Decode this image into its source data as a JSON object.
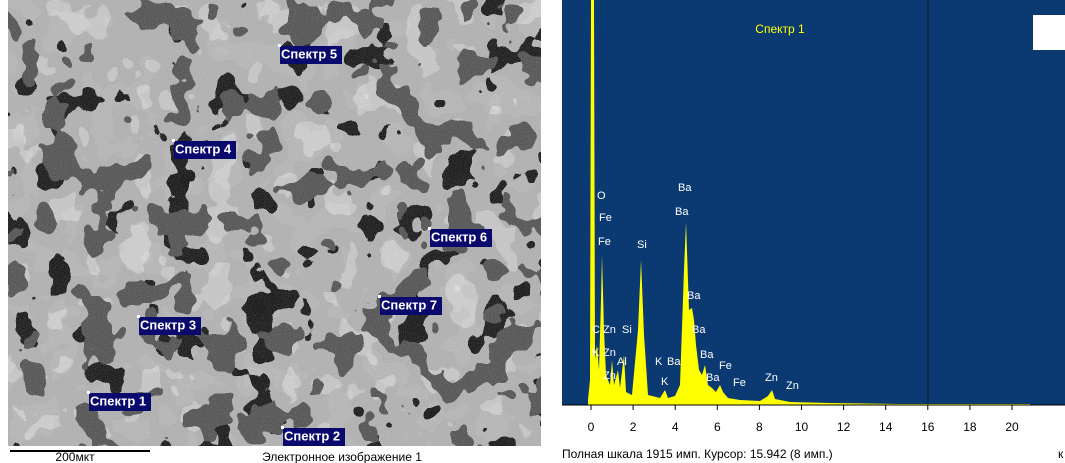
{
  "sem_image": {
    "labels": [
      "Спектр 5",
      "Спектр 4",
      "Спектр 6",
      "Спектр 7",
      "Спектр 3",
      "Спектр 1",
      "Спектр 2"
    ],
    "scale_bar": "200мкт",
    "caption": "Электронное изображение 1"
  },
  "spectrum": {
    "title": "Спектр 1",
    "xticks": [
      0,
      2,
      4,
      6,
      8,
      10,
      12,
      14,
      16,
      18,
      20
    ],
    "peak_labels": [
      "O",
      "Fe",
      "Fe",
      "Si",
      "Ba",
      "Ba",
      "Ba",
      "Ba",
      "Ba",
      "Ba",
      "C",
      "K",
      "Zn",
      "Zn",
      "Zn",
      "Al",
      "Si",
      "K",
      "Ba",
      "K",
      "Fe",
      "Fe",
      "Zn",
      "Zn"
    ],
    "status": "Полная шкала 1915 имп. Курсор: 15.942 (8 имп.)",
    "unit": "к"
  }
}
